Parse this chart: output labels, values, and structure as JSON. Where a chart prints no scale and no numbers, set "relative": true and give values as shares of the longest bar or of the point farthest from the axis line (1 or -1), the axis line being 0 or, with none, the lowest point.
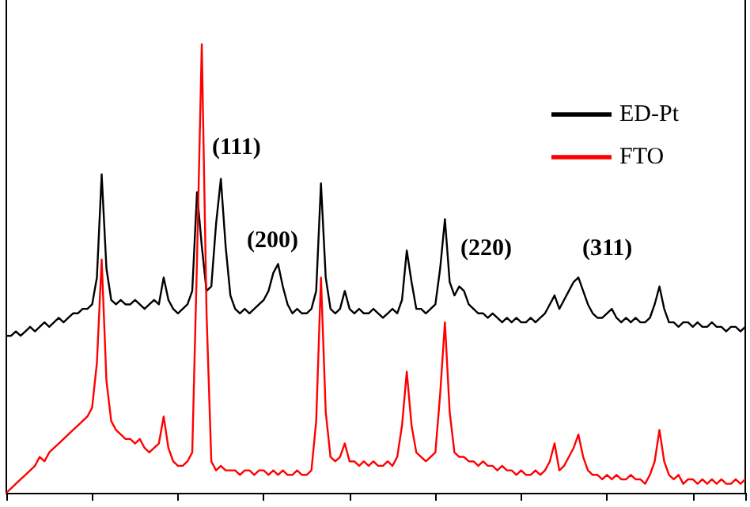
{
  "chart_data": {
    "type": "line",
    "relative": true,
    "legend": "top right",
    "marker": "none",
    "line_style": "solid",
    "grid": false,
    "categories": [
      null,
      null,
      null,
      null,
      null,
      null,
      null,
      null,
      null,
      null,
      null,
      null,
      null,
      null,
      null,
      null,
      null,
      null,
      null,
      null,
      null,
      null,
      null,
      null,
      null,
      null,
      null,
      null,
      null,
      null,
      null,
      null,
      null,
      null,
      null,
      null,
      null,
      null,
      null,
      null,
      null,
      null,
      null,
      null,
      null,
      null,
      null,
      null,
      null,
      null,
      null,
      null,
      null,
      null,
      null,
      null,
      null,
      null,
      null,
      null,
      null,
      null,
      null,
      null,
      null,
      null,
      null,
      null,
      null,
      null,
      null,
      null,
      null,
      null,
      null,
      null,
      null,
      null,
      null,
      null,
      null,
      null,
      null,
      null,
      null,
      null,
      null,
      null,
      null,
      null,
      null,
      null,
      null,
      null,
      null,
      null,
      null,
      null,
      null,
      null,
      null,
      null,
      null,
      null,
      null,
      null,
      null,
      null,
      null,
      null,
      null,
      null,
      null,
      null,
      null,
      null,
      null,
      null,
      null,
      null,
      null,
      null,
      null,
      null,
      null,
      null,
      null,
      null,
      null,
      null,
      null,
      null,
      null,
      null,
      null,
      null,
      null,
      null,
      null,
      null,
      null,
      null,
      null,
      null,
      null,
      null,
      null,
      null,
      null,
      null,
      null,
      null,
      null,
      null,
      null,
      null
    ],
    "series": [
      {
        "name": "ED-Pt",
        "color": "#000000",
        "values": [
          0.35,
          0.35,
          0.36,
          0.35,
          0.36,
          0.37,
          0.36,
          0.37,
          0.38,
          0.37,
          0.38,
          0.39,
          0.38,
          0.39,
          0.4,
          0.4,
          0.41,
          0.41,
          0.42,
          0.48,
          0.71,
          0.5,
          0.43,
          0.42,
          0.43,
          0.42,
          0.42,
          0.43,
          0.42,
          0.41,
          0.42,
          0.43,
          0.42,
          0.48,
          0.43,
          0.41,
          0.4,
          0.41,
          0.42,
          0.45,
          0.67,
          0.55,
          0.45,
          0.46,
          0.6,
          0.7,
          0.55,
          0.44,
          0.41,
          0.4,
          0.41,
          0.4,
          0.41,
          0.42,
          0.43,
          0.45,
          0.49,
          0.51,
          0.46,
          0.42,
          0.4,
          0.41,
          0.4,
          0.4,
          0.41,
          0.45,
          0.69,
          0.48,
          0.41,
          0.4,
          0.41,
          0.45,
          0.41,
          0.4,
          0.41,
          0.4,
          0.4,
          0.41,
          0.4,
          0.39,
          0.4,
          0.41,
          0.4,
          0.43,
          0.54,
          0.47,
          0.41,
          0.41,
          0.4,
          0.41,
          0.42,
          0.5,
          0.61,
          0.47,
          0.44,
          0.46,
          0.45,
          0.42,
          0.41,
          0.4,
          0.4,
          0.39,
          0.4,
          0.39,
          0.38,
          0.39,
          0.38,
          0.39,
          0.38,
          0.38,
          0.39,
          0.38,
          0.39,
          0.4,
          0.42,
          0.44,
          0.41,
          0.43,
          0.45,
          0.47,
          0.48,
          0.45,
          0.42,
          0.4,
          0.39,
          0.39,
          0.4,
          0.41,
          0.39,
          0.38,
          0.39,
          0.38,
          0.39,
          0.38,
          0.38,
          0.39,
          0.42,
          0.46,
          0.41,
          0.38,
          0.38,
          0.37,
          0.38,
          0.38,
          0.37,
          0.38,
          0.37,
          0.37,
          0.38,
          0.37,
          0.37,
          0.36,
          0.37,
          0.37,
          0.36,
          0.37
        ]
      },
      {
        "name": "FTO",
        "color": "#ff0000",
        "values": [
          0.0,
          0.01,
          0.02,
          0.03,
          0.04,
          0.05,
          0.06,
          0.08,
          0.07,
          0.09,
          0.1,
          0.11,
          0.12,
          0.13,
          0.14,
          0.15,
          0.16,
          0.17,
          0.19,
          0.29,
          0.52,
          0.25,
          0.16,
          0.14,
          0.13,
          0.12,
          0.12,
          0.11,
          0.12,
          0.1,
          0.09,
          0.1,
          0.11,
          0.17,
          0.1,
          0.07,
          0.06,
          0.06,
          0.07,
          0.09,
          0.52,
          1,
          0.4,
          0.07,
          0.05,
          0.06,
          0.05,
          0.05,
          0.05,
          0.04,
          0.05,
          0.05,
          0.04,
          0.05,
          0.05,
          0.04,
          0.05,
          0.04,
          0.05,
          0.04,
          0.04,
          0.05,
          0.04,
          0.04,
          0.05,
          0.16,
          0.48,
          0.18,
          0.08,
          0.07,
          0.08,
          0.11,
          0.07,
          0.07,
          0.06,
          0.07,
          0.06,
          0.07,
          0.06,
          0.06,
          0.07,
          0.06,
          0.08,
          0.15,
          0.27,
          0.15,
          0.09,
          0.08,
          0.07,
          0.08,
          0.09,
          0.22,
          0.38,
          0.18,
          0.09,
          0.08,
          0.08,
          0.07,
          0.07,
          0.06,
          0.07,
          0.06,
          0.06,
          0.05,
          0.06,
          0.05,
          0.05,
          0.04,
          0.05,
          0.04,
          0.04,
          0.05,
          0.04,
          0.05,
          0.07,
          0.11,
          0.05,
          0.06,
          0.08,
          0.1,
          0.13,
          0.08,
          0.05,
          0.04,
          0.04,
          0.03,
          0.04,
          0.03,
          0.04,
          0.03,
          0.03,
          0.04,
          0.03,
          0.03,
          0.02,
          0.04,
          0.07,
          0.14,
          0.07,
          0.04,
          0.03,
          0.04,
          0.02,
          0.03,
          0.03,
          0.02,
          0.03,
          0.02,
          0.03,
          0.02,
          0.03,
          0.02,
          0.02,
          0.03,
          0.02,
          0.03
        ]
      }
    ],
    "annotations": [
      "(111)",
      "(200)",
      "(220)",
      "(311)"
    ]
  }
}
